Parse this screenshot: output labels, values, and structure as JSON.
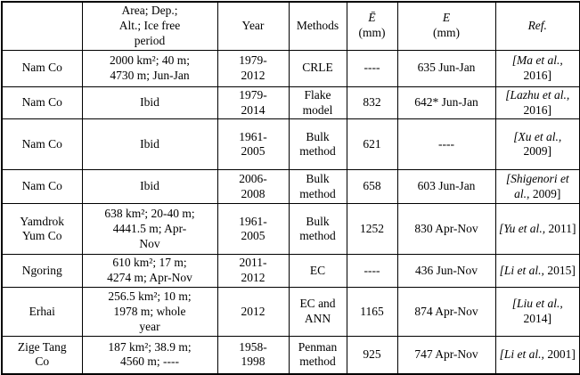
{
  "table": {
    "headers": [
      {
        "id": "lake",
        "line1": "",
        "line2": "",
        "italic": false
      },
      {
        "id": "area",
        "line1": "Area; Dep.;\nAlt.; Ice free\nperiod",
        "line2": "",
        "italic": false
      },
      {
        "id": "year",
        "line1": "Year",
        "line2": "",
        "italic": false
      },
      {
        "id": "methods",
        "line1": "Methods",
        "line2": "",
        "italic": false
      },
      {
        "id": "mean-evaporation",
        "line1": "Ē",
        "line2": "(mm)",
        "italic": true
      },
      {
        "id": "evaporation",
        "line1": "E",
        "line2": "(mm)",
        "italic": true
      },
      {
        "id": "reference",
        "line1": "Ref.",
        "line2": "",
        "italic": true
      }
    ],
    "rows": [
      {
        "name": "Nam Co",
        "area": "2000 km²; 40 m;\n4730 m; Jun-Jan",
        "year": "1979-\n2012",
        "methods": "CRLE",
        "ebar": "----",
        "e": "635 Jun-Jan",
        "ref_authors": "[Ma et al.,",
        "ref_year": "2016]"
      },
      {
        "name": "Nam Co",
        "area": "Ibid",
        "year": "1979-\n2014",
        "methods": "Flake\nmodel",
        "ebar": "832",
        "e": "642* Jun-Jan",
        "ref_authors": "[Lazhu et al.,",
        "ref_year": "2016]"
      },
      {
        "name": "Nam Co",
        "area": "Ibid",
        "year": "1961-\n2005",
        "methods": "Bulk\nmethod",
        "ebar": "621",
        "e": "----",
        "ref_authors": "[Xu et al.,",
        "ref_year": "2009]"
      },
      {
        "name": "Nam Co",
        "area": "Ibid",
        "year": "2006-\n2008",
        "methods": "Bulk\nmethod",
        "ebar": "658",
        "e": "603 Jun-Jan",
        "ref_authors": "[Shigenori et al.,",
        "ref_year": "2009]"
      },
      {
        "name": "Yamdrok\nYum Co",
        "area": "638 km²; 20-40 m;\n4441.5 m; Apr-\nNov",
        "year": "1961-\n2005",
        "methods": "Bulk\nmethod",
        "ebar": "1252",
        "e": "830 Apr-Nov",
        "ref_authors": "[Yu et al.,",
        "ref_year": "2011]"
      },
      {
        "name": "Ngoring",
        "area": "610 km²; 17 m;\n4274 m; Apr-Nov",
        "year": "2011-\n2012",
        "methods": "EC",
        "ebar": "----",
        "e": "436 Jun-Nov",
        "ref_authors": "[Li et al.,",
        "ref_year": "2015]"
      },
      {
        "name": "Erhai",
        "area": "256.5 km²; 10 m;\n1978 m; whole\nyear",
        "year": "2012",
        "methods": "EC and\nANN",
        "ebar": "1165",
        "e": "874 Apr-Nov",
        "ref_authors": "[Liu et al.,",
        "ref_year": "2014]"
      },
      {
        "name": "Zige Tang\nCo",
        "area": "187 km²; 38.9 m;\n4560 m; ----",
        "year": "1958-\n1998",
        "methods": "Penman\nmethod",
        "ebar": "925",
        "e": "747 Apr-Nov",
        "ref_authors": "[Li et al.,",
        "ref_year": "2001]"
      }
    ]
  }
}
